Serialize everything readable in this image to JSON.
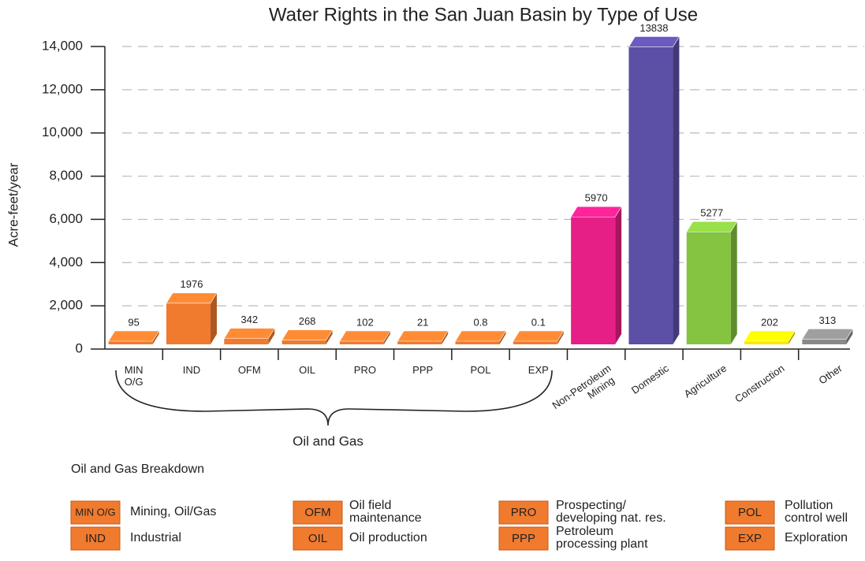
{
  "chart_data": {
    "type": "bar3d",
    "title": "Water Rights in the San Juan Basin by Type of Use",
    "y_label": "Acre-feet/year",
    "categories": [
      "MIN O/G",
      "IND",
      "OFM",
      "OIL",
      "PRO",
      "PPP",
      "POL",
      "EXP",
      "Non-Petroleum Mining",
      "Domestic",
      "Agriculture",
      "Construction",
      "Other"
    ],
    "values": [
      95,
      1976,
      342,
      268,
      102,
      21,
      0.8,
      0.1,
      5970,
      13838,
      5277,
      202,
      313
    ],
    "colors": [
      "#f07a2e",
      "#f07a2e",
      "#f07a2e",
      "#f07a2e",
      "#f07a2e",
      "#f07a2e",
      "#f07a2e",
      "#f07a2e",
      "#e61f86",
      "#5b4fa6",
      "#84c440",
      "#ffe500",
      "#8a8a8a"
    ],
    "ylim": [
      0,
      14000
    ],
    "yticks": [
      0,
      {
        "value": 2000,
        "label": "2,000"
      },
      {
        "value": 4000,
        "label": "4,000"
      },
      {
        "value": 6000,
        "label": "6,000"
      },
      {
        "value": 8000,
        "label": "8,000"
      },
      {
        "value": 10000,
        "label": "10,000"
      },
      {
        "value": 12000,
        "label": "12,000"
      },
      {
        "value": 14000,
        "label": "14,000"
      }
    ],
    "grid": true,
    "group_annotation": "Oil and Gas",
    "legend_title": "Oil and Gas Breakdown",
    "breakdown": [
      {
        "code": "MIN O/G",
        "lines": [
          "Mining, Oil/Gas"
        ]
      },
      {
        "code": "IND",
        "lines": [
          "Industrial"
        ]
      },
      {
        "code": "OFM",
        "lines": [
          "Oil field",
          "maintenance"
        ]
      },
      {
        "code": "OIL",
        "lines": [
          "Oil production"
        ]
      },
      {
        "code": "PRO",
        "lines": [
          "Prospecting/",
          "developing nat. res."
        ]
      },
      {
        "code": "PPP",
        "lines": [
          "Petroleum",
          "processing plant"
        ]
      },
      {
        "code": "POL",
        "lines": [
          "Pollution",
          "control well"
        ]
      },
      {
        "code": "EXP",
        "lines": [
          "Exploration"
        ]
      }
    ]
  }
}
